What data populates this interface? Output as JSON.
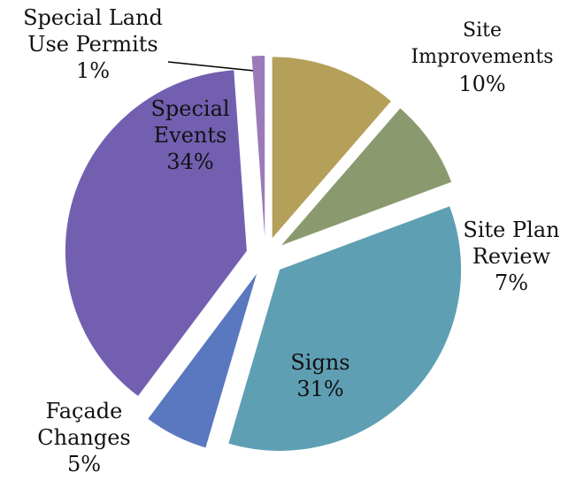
{
  "chart_data": {
    "type": "pie",
    "categories": [
      "Site Improvements",
      "Site Plan Review",
      "Signs",
      "Façade Changes",
      "Special Events",
      "Special Land Use Permits"
    ],
    "values": [
      10,
      7,
      31,
      5,
      34,
      1
    ],
    "value_labels": [
      "10%",
      "7%",
      "31%",
      "5%",
      "34%",
      "1%"
    ],
    "colors": [
      "#b5a05a",
      "#8b9a6e",
      "#5f9fb4",
      "#5a78c0",
      "#735fb0",
      "#9a7ab8"
    ]
  }
}
